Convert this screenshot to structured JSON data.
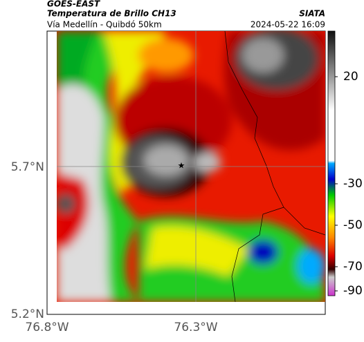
{
  "header": {
    "source": "GOES-EAST",
    "title": "Temperatura de Brillo CH13",
    "agency": "SIATA",
    "subtitle": "Vía Medellín - Quibdó 50km",
    "datetime": "2024-05-22 16:09"
  },
  "map": {
    "lat_labels": [
      "5.7°N",
      "5.2°N"
    ],
    "lon_labels": [
      "76.8°W",
      "76.3°W"
    ]
  },
  "colorbar": {
    "ticks": [
      20,
      -30,
      -50,
      -70,
      -90
    ]
  }
}
